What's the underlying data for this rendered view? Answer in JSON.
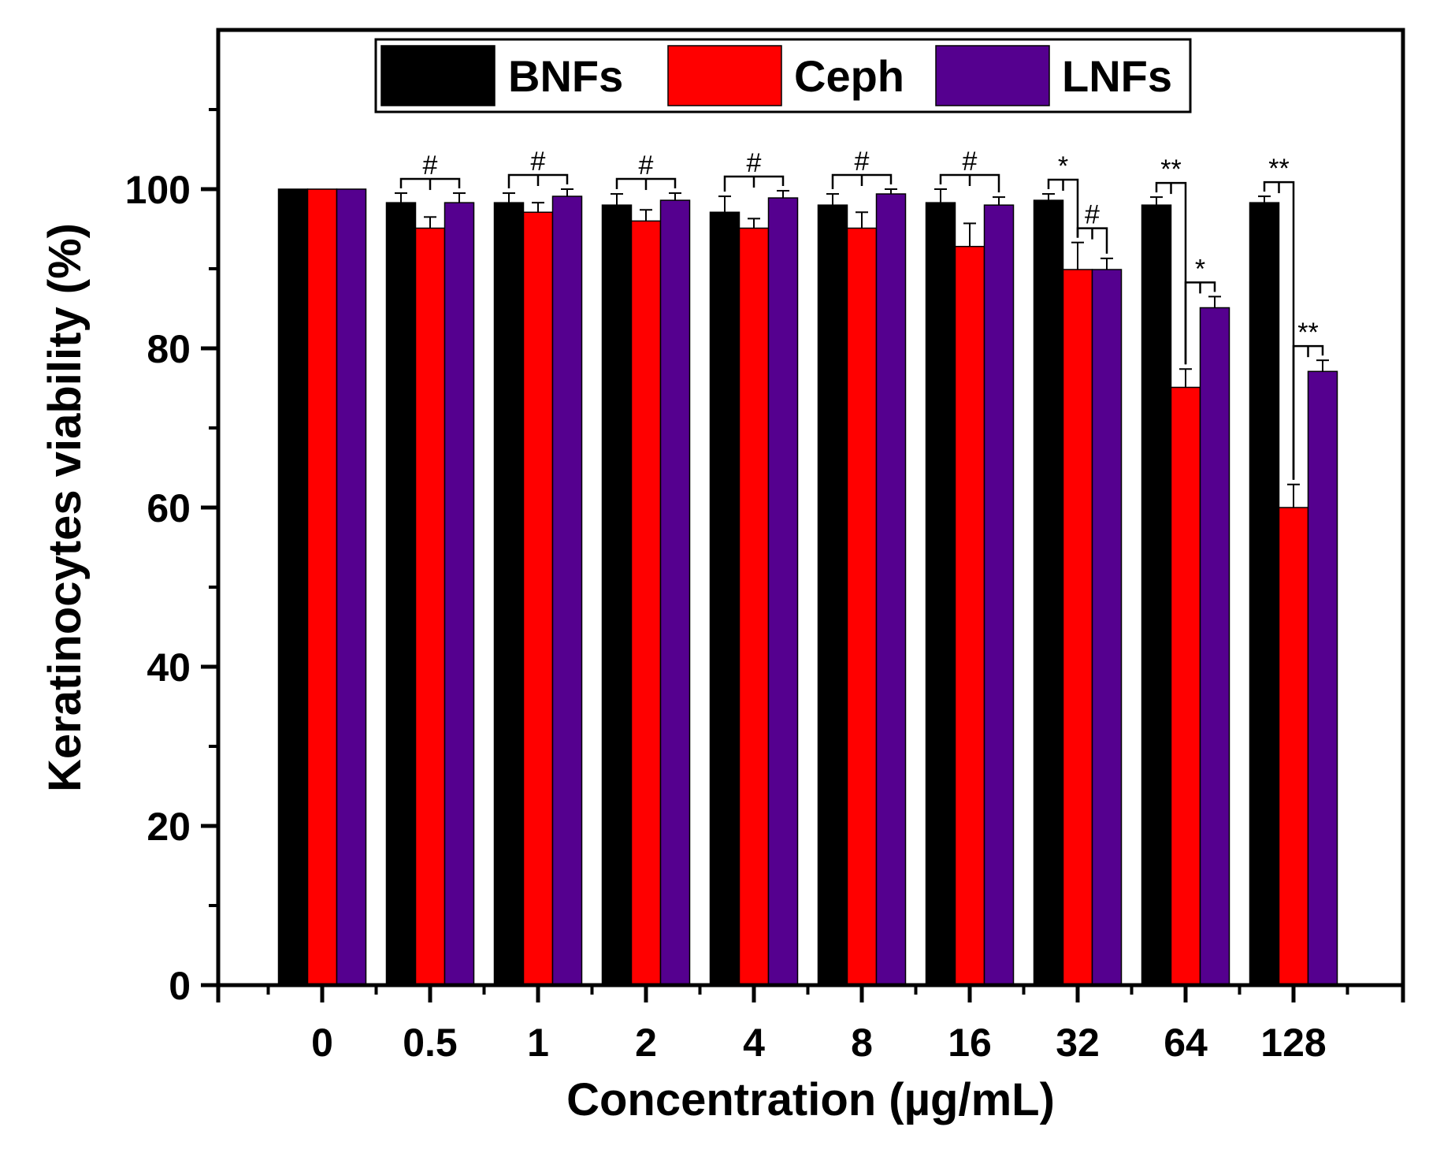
{
  "chart_data": {
    "type": "bar",
    "xlabel": "Concentration (µg/mL)",
    "ylabel": "Keratinocytes viability (%)",
    "ylim": [
      0,
      120
    ],
    "yticks": [
      0,
      20,
      40,
      60,
      80,
      100
    ],
    "categories": [
      "0",
      "0.5",
      "1",
      "2",
      "4",
      "8",
      "16",
      "32",
      "64",
      "128"
    ],
    "legend_position": "top-center",
    "series": [
      {
        "name": "BNFs",
        "color": "#000000",
        "values": [
          100,
          98.3,
          98.3,
          98.0,
          97.1,
          98.0,
          98.3,
          98.6,
          98.0,
          98.3
        ],
        "errors": [
          0,
          1.2,
          1.2,
          1.4,
          2.0,
          1.4,
          1.7,
          0.8,
          1.0,
          0.8
        ]
      },
      {
        "name": "Ceph",
        "color": "#ff0000",
        "values": [
          100,
          95.1,
          97.1,
          96.0,
          95.1,
          95.1,
          92.8,
          89.9,
          75.1,
          60.0
        ],
        "errors": [
          0,
          1.4,
          1.2,
          1.4,
          1.2,
          2.0,
          2.9,
          3.4,
          2.3,
          2.9
        ]
      },
      {
        "name": "LNFs",
        "color": "#55008f",
        "values": [
          100,
          98.3,
          99.1,
          98.6,
          98.9,
          99.4,
          98.0,
          89.9,
          85.1,
          77.1
        ],
        "errors": [
          0,
          1.2,
          0.9,
          0.9,
          0.9,
          0.6,
          1.0,
          1.4,
          1.4,
          1.4
        ]
      }
    ],
    "annotations": [
      {
        "text": "#",
        "category": "0.5",
        "from": "BNFs",
        "to": "LNFs"
      },
      {
        "text": "#",
        "category": "1",
        "from": "BNFs",
        "to": "LNFs"
      },
      {
        "text": "#",
        "category": "2",
        "from": "BNFs",
        "to": "LNFs"
      },
      {
        "text": "#",
        "category": "4",
        "from": "BNFs",
        "to": "LNFs"
      },
      {
        "text": "#",
        "category": "8",
        "from": "BNFs",
        "to": "LNFs"
      },
      {
        "text": "#",
        "category": "16",
        "from": "BNFs",
        "to": "LNFs"
      },
      {
        "text": "*",
        "category": "32",
        "from": "BNFs",
        "to": "Ceph"
      },
      {
        "text": "#",
        "category": "32",
        "from": "Ceph",
        "to": "LNFs"
      },
      {
        "text": "**",
        "category": "64",
        "from": "BNFs",
        "to": "Ceph"
      },
      {
        "text": "*",
        "category": "64",
        "from": "Ceph",
        "to": "LNFs"
      },
      {
        "text": "**",
        "category": "128",
        "from": "BNFs",
        "to": "Ceph"
      },
      {
        "text": "**",
        "category": "128",
        "from": "Ceph",
        "to": "LNFs"
      }
    ]
  }
}
